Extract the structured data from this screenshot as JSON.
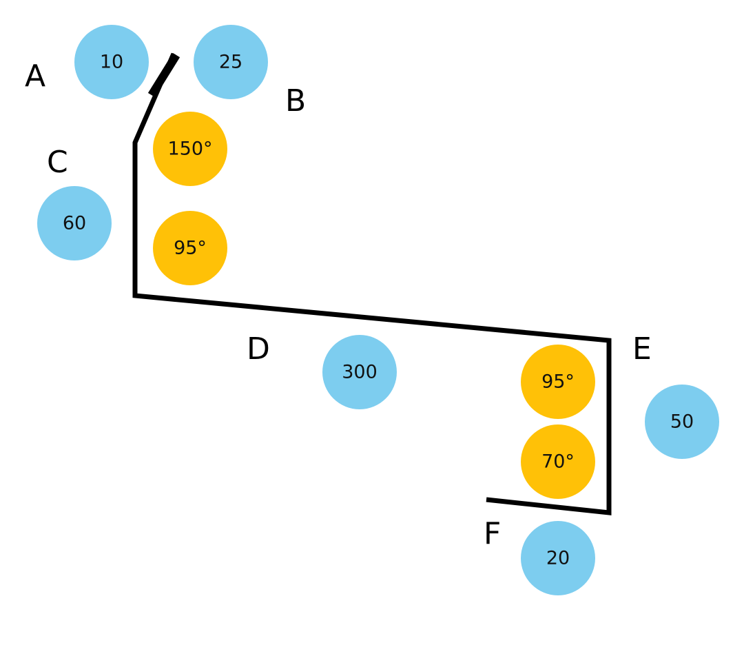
{
  "colors": {
    "length_badge": "#7dcdef",
    "angle_badge": "#ffc107",
    "line": "#000000"
  },
  "points": {
    "A": "A",
    "B": "B",
    "C": "C",
    "D": "D",
    "E": "E",
    "F": "F"
  },
  "lengths": {
    "ab_start": "10",
    "ab": "25",
    "bc": "60",
    "cd": "300",
    "de": "50",
    "ef": "20"
  },
  "angles": {
    "at_c": "150°",
    "at_c_lower": "95°",
    "at_e": "95°",
    "at_e_lower": "70°"
  }
}
